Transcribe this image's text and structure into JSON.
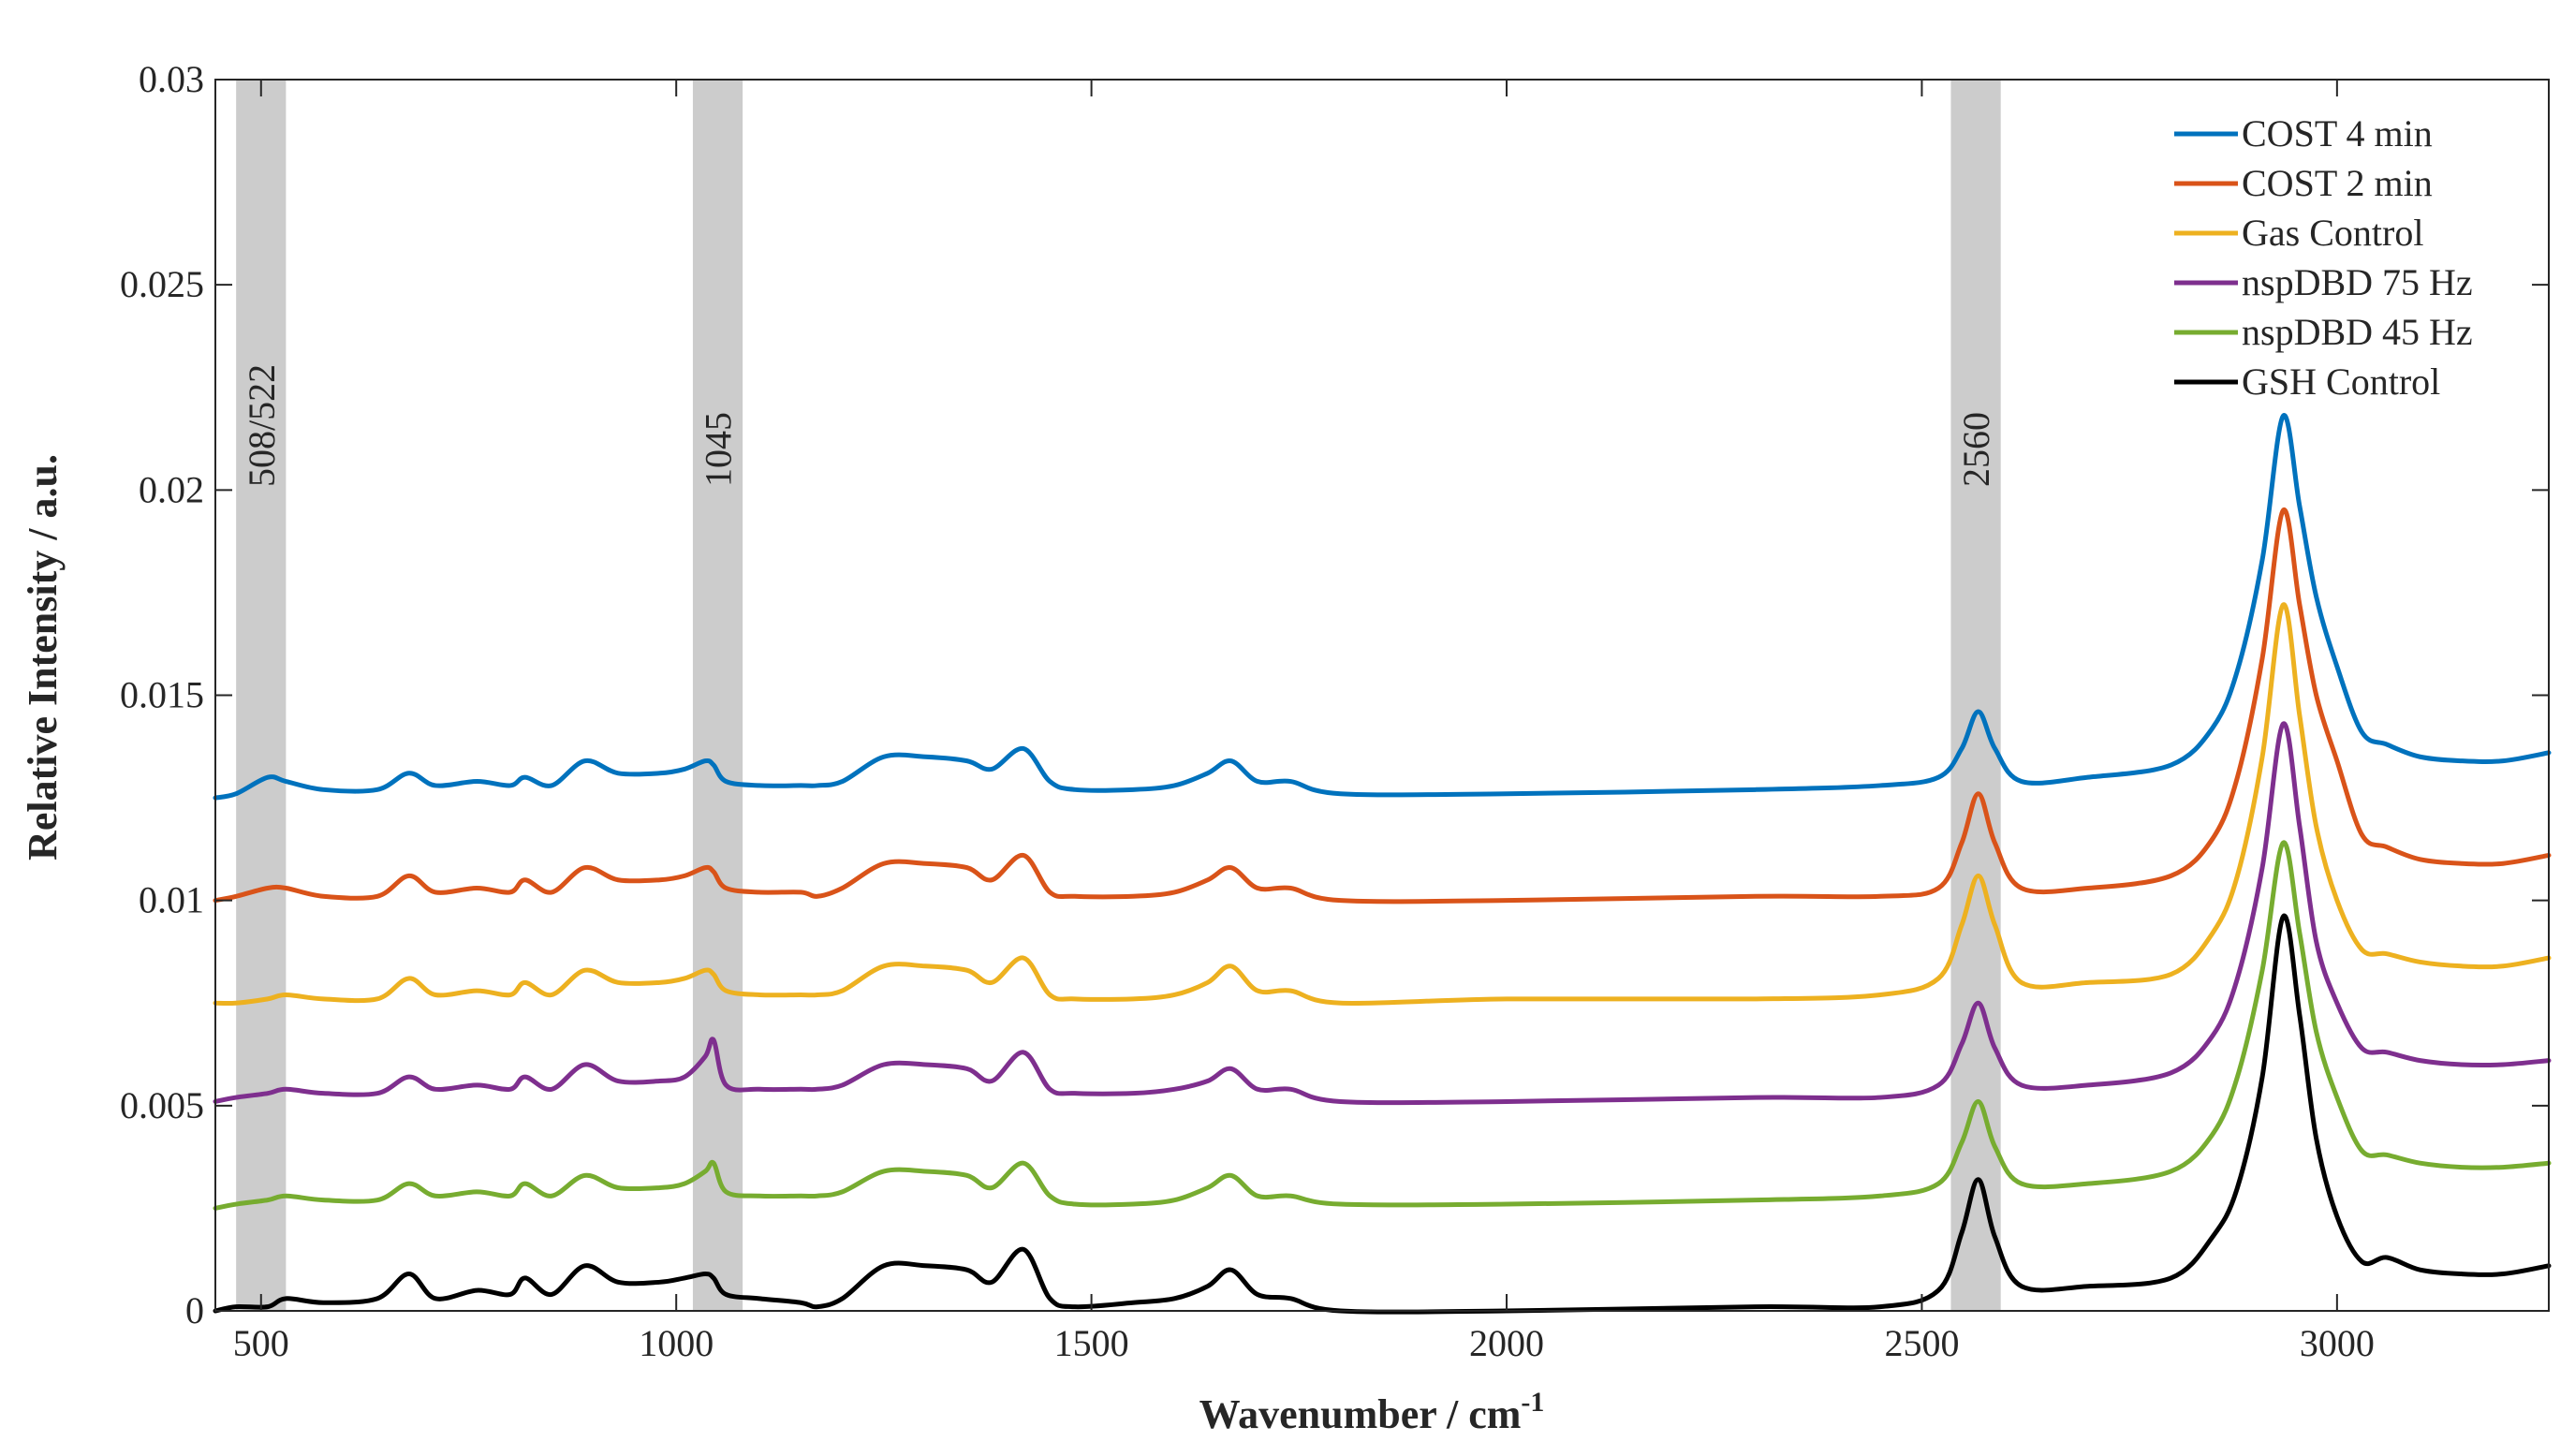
{
  "chart_data": {
    "type": "line",
    "title": "",
    "xlabel": "Wavenumber / cm",
    "xlabel_superscript": "-1",
    "ylabel": "Relative Intensity / a.u.",
    "xlim": [
      445,
      3255
    ],
    "ylim": [
      0,
      0.03
    ],
    "x_ticks": [
      500,
      1000,
      1500,
      2000,
      2500,
      3000
    ],
    "x_tick_labels": [
      "500",
      "1000",
      "1500",
      "2000",
      "2500",
      "3000"
    ],
    "y_ticks": [
      0,
      0.005,
      0.01,
      0.015,
      0.02,
      0.025,
      0.03
    ],
    "y_tick_labels": [
      "0",
      "0.005",
      "0.01",
      "0.015",
      "0.02",
      "0.025",
      "0.03"
    ],
    "grid": false,
    "legend_position": "top-right",
    "highlight_bands": [
      {
        "label": "508/522",
        "range": [
          470,
          530
        ]
      },
      {
        "label": "1045",
        "range": [
          1020,
          1080
        ]
      },
      {
        "label": "2560",
        "range": [
          2535,
          2595
        ]
      }
    ],
    "x": [
      445,
      470,
      508,
      530,
      575,
      640,
      678,
      710,
      760,
      800,
      818,
      850,
      890,
      930,
      980,
      1010,
      1035,
      1045,
      1060,
      1100,
      1150,
      1170,
      1200,
      1250,
      1300,
      1350,
      1380,
      1418,
      1450,
      1480,
      1550,
      1600,
      1640,
      1668,
      1700,
      1740,
      1800,
      2000,
      2300,
      2450,
      2520,
      2548,
      2568,
      2588,
      2620,
      2700,
      2800,
      2850,
      2880,
      2910,
      2935,
      2955,
      2975,
      3000,
      3030,
      3060,
      3100,
      3150,
      3200,
      3255
    ],
    "series": [
      {
        "name": "COST 4 min",
        "color": "#0072BD",
        "values": [
          0.0125,
          0.0126,
          0.013,
          0.0129,
          0.0127,
          0.0127,
          0.0131,
          0.0128,
          0.0129,
          0.0128,
          0.013,
          0.0128,
          0.0134,
          0.0131,
          0.0131,
          0.0132,
          0.0134,
          0.0133,
          0.0129,
          0.0128,
          0.0128,
          0.0128,
          0.0129,
          0.0135,
          0.0135,
          0.0134,
          0.0132,
          0.0137,
          0.0129,
          0.0127,
          0.0127,
          0.0128,
          0.0131,
          0.0134,
          0.0129,
          0.0129,
          0.0126,
          0.0126,
          0.0127,
          0.0128,
          0.013,
          0.0137,
          0.0146,
          0.0137,
          0.0129,
          0.013,
          0.0133,
          0.0142,
          0.0156,
          0.0183,
          0.0218,
          0.0196,
          0.0174,
          0.0157,
          0.0141,
          0.0138,
          0.0135,
          0.0134,
          0.0134,
          0.0136
        ]
      },
      {
        "name": "COST 2 min",
        "color": "#D95319",
        "values": [
          0.01,
          0.0101,
          0.0103,
          0.0103,
          0.0101,
          0.0101,
          0.0106,
          0.0102,
          0.0103,
          0.0102,
          0.0105,
          0.0102,
          0.0108,
          0.0105,
          0.0105,
          0.0106,
          0.0108,
          0.0107,
          0.0103,
          0.0102,
          0.0102,
          0.0101,
          0.0103,
          0.0109,
          0.0109,
          0.0108,
          0.0105,
          0.0111,
          0.0102,
          0.0101,
          0.0101,
          0.0102,
          0.0105,
          0.0108,
          0.0103,
          0.0103,
          0.01,
          0.01,
          0.0101,
          0.0101,
          0.0103,
          0.0114,
          0.0126,
          0.0114,
          0.0103,
          0.0103,
          0.0106,
          0.0115,
          0.013,
          0.0159,
          0.0195,
          0.0172,
          0.015,
          0.0134,
          0.0116,
          0.0113,
          0.011,
          0.0109,
          0.0109,
          0.0111
        ]
      },
      {
        "name": "Gas Control",
        "color": "#EDB120",
        "values": [
          0.0075,
          0.0075,
          0.0076,
          0.0077,
          0.0076,
          0.0076,
          0.0081,
          0.0077,
          0.0078,
          0.0077,
          0.008,
          0.0077,
          0.0083,
          0.008,
          0.008,
          0.0081,
          0.0083,
          0.0082,
          0.0078,
          0.0077,
          0.0077,
          0.0077,
          0.0078,
          0.0084,
          0.0084,
          0.0083,
          0.008,
          0.0086,
          0.0077,
          0.0076,
          0.0076,
          0.0077,
          0.008,
          0.0084,
          0.0078,
          0.0078,
          0.0075,
          0.0076,
          0.0076,
          0.0077,
          0.0081,
          0.0094,
          0.0106,
          0.0094,
          0.008,
          0.008,
          0.0082,
          0.0092,
          0.0106,
          0.0135,
          0.0172,
          0.0145,
          0.0118,
          0.01,
          0.0088,
          0.0087,
          0.0085,
          0.0084,
          0.0084,
          0.0086
        ]
      },
      {
        "name": "nspDBD 75 Hz",
        "color": "#7E2F8E",
        "values": [
          0.0051,
          0.0052,
          0.0053,
          0.0054,
          0.0053,
          0.0053,
          0.0057,
          0.0054,
          0.0055,
          0.0054,
          0.0057,
          0.0054,
          0.006,
          0.0056,
          0.0056,
          0.0057,
          0.0062,
          0.0066,
          0.0055,
          0.0054,
          0.0054,
          0.0054,
          0.0055,
          0.006,
          0.006,
          0.0059,
          0.0056,
          0.0063,
          0.0054,
          0.0053,
          0.0053,
          0.0054,
          0.0056,
          0.0059,
          0.0054,
          0.0054,
          0.0051,
          0.0051,
          0.0052,
          0.0052,
          0.0055,
          0.0065,
          0.0075,
          0.0064,
          0.0055,
          0.0055,
          0.0058,
          0.0067,
          0.0081,
          0.0108,
          0.0143,
          0.0118,
          0.009,
          0.0075,
          0.0064,
          0.0063,
          0.0061,
          0.006,
          0.006,
          0.0061
        ]
      },
      {
        "name": "nspDBD 45 Hz",
        "color": "#77AC30",
        "values": [
          0.0025,
          0.0026,
          0.0027,
          0.0028,
          0.0027,
          0.0027,
          0.0031,
          0.0028,
          0.0029,
          0.0028,
          0.0031,
          0.0028,
          0.0033,
          0.003,
          0.003,
          0.0031,
          0.0034,
          0.0036,
          0.0029,
          0.0028,
          0.0028,
          0.0028,
          0.0029,
          0.0034,
          0.0034,
          0.0033,
          0.003,
          0.0036,
          0.0028,
          0.0026,
          0.0026,
          0.0027,
          0.003,
          0.0033,
          0.0028,
          0.0028,
          0.0026,
          0.0026,
          0.0027,
          0.0028,
          0.0031,
          0.0041,
          0.0051,
          0.004,
          0.0031,
          0.0031,
          0.0034,
          0.0043,
          0.0057,
          0.0083,
          0.0114,
          0.0092,
          0.0068,
          0.0052,
          0.0039,
          0.0038,
          0.0036,
          0.0035,
          0.0035,
          0.0036
        ]
      },
      {
        "name": "GSH Control",
        "color": "#000000",
        "values": [
          0.0,
          0.0001,
          0.0001,
          0.0003,
          0.0002,
          0.0003,
          0.0009,
          0.0003,
          0.0005,
          0.0004,
          0.0008,
          0.0004,
          0.0011,
          0.0007,
          0.0007,
          0.0008,
          0.0009,
          0.0008,
          0.0004,
          0.0003,
          0.0002,
          0.0001,
          0.0003,
          0.0011,
          0.0011,
          0.001,
          0.0007,
          0.0015,
          0.0003,
          0.0001,
          0.0002,
          0.0003,
          0.0006,
          0.001,
          0.0004,
          0.0003,
          0.0,
          0.0,
          0.0001,
          0.0001,
          0.0005,
          0.0019,
          0.0032,
          0.0018,
          0.0006,
          0.0006,
          0.0008,
          0.0018,
          0.003,
          0.0057,
          0.0096,
          0.0072,
          0.0042,
          0.0023,
          0.0012,
          0.0013,
          0.001,
          0.0009,
          0.0009,
          0.0011
        ]
      }
    ]
  }
}
